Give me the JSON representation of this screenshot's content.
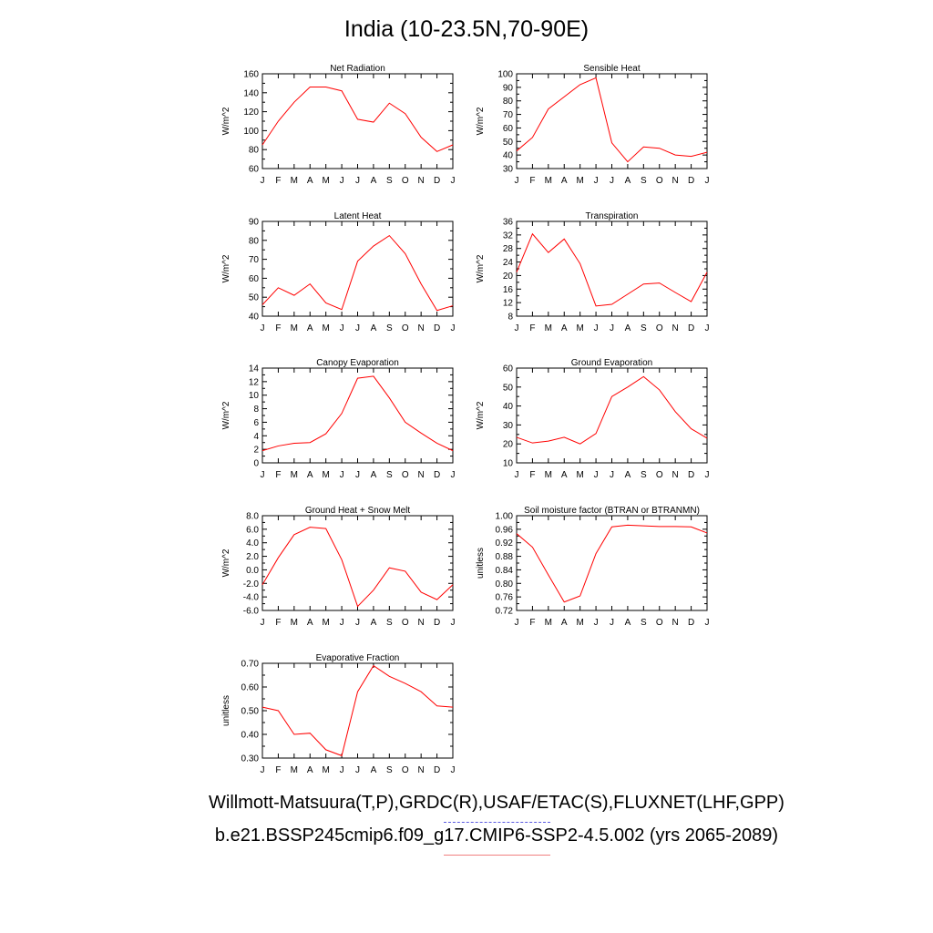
{
  "title": "India (10-23.5N,70-90E)",
  "footer": {
    "line1": "Willmott-Matsuura(T,P),GRDC(R),USAF/ETAC(S),FLUXNET(LHF,GPP)",
    "line2": "b.e21.BSSP245cmip6.f09_g17.CMIP6-SSP2-4.5.002 (yrs 2065-2089)"
  },
  "colors": {
    "model_line": "#ff0000",
    "obs_legend": "#5a5ae0",
    "model_legend": "#f08080"
  },
  "months": [
    "J",
    "F",
    "M",
    "A",
    "M",
    "J",
    "J",
    "A",
    "S",
    "O",
    "N",
    "D",
    "J"
  ],
  "chart_data": [
    {
      "type": "line",
      "title": "Net Radiation",
      "ylabel": "W/m^2",
      "ylim": [
        60,
        160
      ],
      "yticks": [
        "60",
        "80",
        "100",
        "120",
        "140",
        "160"
      ],
      "minor": 2,
      "values": [
        85,
        110,
        130,
        146,
        146,
        142,
        112,
        109,
        129,
        118,
        93,
        78,
        85
      ]
    },
    {
      "type": "line",
      "title": "Sensible Heat",
      "ylabel": "W/m^2",
      "ylim": [
        30,
        100
      ],
      "yticks": [
        "30",
        "40",
        "50",
        "60",
        "70",
        "80",
        "90",
        "100"
      ],
      "minor": 2,
      "values": [
        43,
        53,
        74,
        83,
        92,
        97,
        49,
        35,
        46,
        45,
        40,
        39,
        42
      ]
    },
    {
      "type": "line",
      "title": "Latent Heat",
      "ylabel": "W/m^2",
      "ylim": [
        40,
        90
      ],
      "yticks": [
        "40",
        "50",
        "60",
        "70",
        "80",
        "90"
      ],
      "minor": 2,
      "values": [
        46,
        55,
        51,
        57,
        47,
        43.5,
        69,
        77,
        82.5,
        73,
        57,
        43,
        45.5
      ]
    },
    {
      "type": "line",
      "title": "Transpiration",
      "ylabel": "W/m^2",
      "ylim": [
        8,
        36
      ],
      "yticks": [
        "8",
        "12",
        "16",
        "20",
        "24",
        "28",
        "32",
        "36"
      ],
      "minor": 2,
      "values": [
        21,
        32.3,
        26.8,
        30.8,
        23.5,
        11,
        11.5,
        14.5,
        17.5,
        17.8,
        15,
        12.3,
        21
      ]
    },
    {
      "type": "line",
      "title": "Canopy Evaporation",
      "ylabel": "W/m^2",
      "ylim": [
        0,
        14
      ],
      "yticks": [
        "0",
        "2",
        "4",
        "6",
        "8",
        "10",
        "12",
        "14"
      ],
      "minor": 2,
      "values": [
        1.8,
        2.5,
        2.9,
        3.0,
        4.3,
        7.3,
        12.5,
        12.8,
        9.6,
        6.0,
        4.4,
        2.9,
        1.8
      ]
    },
    {
      "type": "line",
      "title": "Ground Evaporation",
      "ylabel": "W/m^2",
      "ylim": [
        10,
        60
      ],
      "yticks": [
        "10",
        "20",
        "30",
        "40",
        "50",
        "60"
      ],
      "minor": 2,
      "values": [
        23.5,
        20.5,
        21.5,
        23.5,
        20,
        25.5,
        45,
        50,
        55.5,
        48.5,
        37,
        28,
        23
      ]
    },
    {
      "type": "line",
      "title": "Ground Heat + Snow Melt",
      "ylabel": "W/m^2",
      "ylim": [
        -6,
        8
      ],
      "yticks": [
        "-6.0",
        "-4.0",
        "-2.0",
        "0.0",
        "2.0",
        "4.0",
        "6.0",
        "8.0"
      ],
      "minor": 2,
      "values": [
        -2.2,
        1.8,
        5.2,
        6.3,
        6.1,
        1.5,
        -5.4,
        -3.0,
        0.3,
        -0.2,
        -3.3,
        -4.4,
        -2.2
      ]
    },
    {
      "type": "line",
      "title": "Soil moisture factor (BTRAN or BTRANMN)",
      "ylabel": "unitless",
      "ylim": [
        0.72,
        1.0
      ],
      "yticks": [
        "0.72",
        "0.76",
        "0.80",
        "0.84",
        "0.88",
        "0.92",
        "0.96",
        "1.00"
      ],
      "minor": 2,
      "values": [
        0.947,
        0.907,
        0.825,
        0.745,
        0.763,
        0.888,
        0.967,
        0.972,
        0.97,
        0.968,
        0.968,
        0.967,
        0.949
      ]
    },
    {
      "type": "line",
      "title": "Evaporative Fraction",
      "ylabel": "unitless",
      "ylim": [
        0.3,
        0.7
      ],
      "yticks": [
        "0.30",
        "0.40",
        "0.50",
        "0.60",
        "0.70"
      ],
      "minor": 2,
      "values": [
        0.515,
        0.5,
        0.4,
        0.405,
        0.335,
        0.31,
        0.58,
        0.69,
        0.645,
        0.615,
        0.58,
        0.52,
        0.515
      ]
    }
  ]
}
